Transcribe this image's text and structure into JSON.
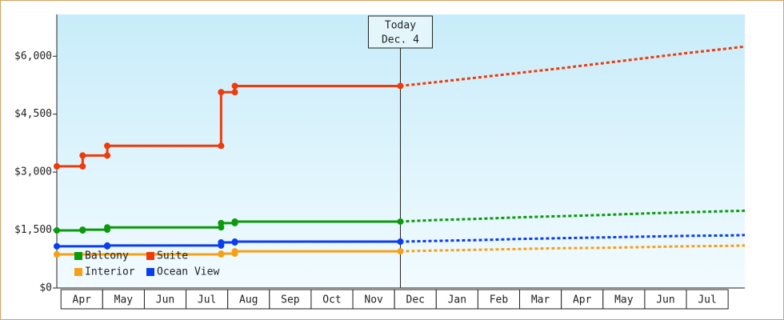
{
  "chart_data": {
    "type": "line",
    "xlim": [
      -0.1,
      16.4
    ],
    "ylim": [
      0,
      7000
    ],
    "yticks": [
      {
        "value": 0,
        "label": "$0"
      },
      {
        "value": 1500,
        "label": "$1,500"
      },
      {
        "value": 3000,
        "label": "$3,000"
      },
      {
        "value": 4500,
        "label": "$4,500"
      },
      {
        "value": 6000,
        "label": "$6,000"
      }
    ],
    "xticks": [
      {
        "value": 0.5,
        "label": "Apr"
      },
      {
        "value": 1.5,
        "label": "May"
      },
      {
        "value": 2.5,
        "label": "Jun"
      },
      {
        "value": 3.5,
        "label": "Jul"
      },
      {
        "value": 4.5,
        "label": "Aug"
      },
      {
        "value": 5.5,
        "label": "Sep"
      },
      {
        "value": 6.5,
        "label": "Oct"
      },
      {
        "value": 7.5,
        "label": "Nov"
      },
      {
        "value": 8.5,
        "label": "Dec"
      },
      {
        "value": 9.5,
        "label": "Jan"
      },
      {
        "value": 10.5,
        "label": "Feb"
      },
      {
        "value": 11.5,
        "label": "Mar"
      },
      {
        "value": 12.5,
        "label": "Apr"
      },
      {
        "value": 13.5,
        "label": "May"
      },
      {
        "value": 14.5,
        "label": "Jun"
      },
      {
        "value": 15.5,
        "label": "Jul"
      }
    ],
    "annotation": {
      "x": 8.14,
      "text": [
        "Today",
        "Dec. 4"
      ]
    },
    "legend": "lower left",
    "series": [
      {
        "name": "Balcony",
        "color": "#0a9a0a",
        "x": [
          -0.1,
          0.52,
          0.52,
          1.11,
          1.11,
          3.84,
          3.84,
          4.17,
          4.17,
          8.14
        ],
        "values": [
          1490,
          1490,
          1510,
          1510,
          1570,
          1570,
          1680,
          1680,
          1720,
          1720
        ],
        "forecast_x": [
          8.14,
          9,
          10,
          11,
          12,
          13,
          14,
          15,
          16,
          16.4
        ],
        "forecast_values": [
          1720,
          1760,
          1790,
          1830,
          1860,
          1890,
          1930,
          1960,
          1990,
          2000
        ]
      },
      {
        "name": "Suite",
        "color": "#f03a0a",
        "x": [
          -0.1,
          0.52,
          0.52,
          1.11,
          1.11,
          3.84,
          3.84,
          4.17,
          4.17,
          8.14
        ],
        "values": [
          3150,
          3150,
          3430,
          3430,
          3680,
          3680,
          5070,
          5070,
          5230,
          5230
        ],
        "forecast_x": [
          8.14,
          9,
          10,
          11,
          12,
          13,
          14,
          15,
          16,
          16.4
        ],
        "forecast_values": [
          5230,
          5330,
          5450,
          5570,
          5690,
          5820,
          5950,
          6080,
          6200,
          6250
        ]
      },
      {
        "name": "Interior",
        "color": "#f5a015",
        "x": [
          -0.1,
          3.84,
          3.84,
          4.17,
          4.17,
          8.14
        ],
        "values": [
          870,
          870,
          890,
          890,
          950,
          950
        ],
        "forecast_x": [
          8.14,
          9,
          10,
          11,
          12,
          13,
          14,
          15,
          16,
          16.4
        ],
        "forecast_values": [
          950,
          970,
          990,
          1010,
          1030,
          1040,
          1060,
          1080,
          1090,
          1100
        ]
      },
      {
        "name": "Ocean View",
        "color": "#0a3cf0",
        "x": [
          -0.1,
          1.11,
          1.11,
          3.84,
          3.84,
          4.17,
          4.17,
          8.14
        ],
        "values": [
          1080,
          1080,
          1100,
          1100,
          1180,
          1180,
          1200,
          1200
        ],
        "forecast_x": [
          8.14,
          9,
          10,
          11,
          12,
          13,
          14,
          15,
          16,
          16.4
        ],
        "forecast_values": [
          1200,
          1220,
          1240,
          1270,
          1290,
          1310,
          1330,
          1350,
          1360,
          1370
        ]
      }
    ]
  }
}
